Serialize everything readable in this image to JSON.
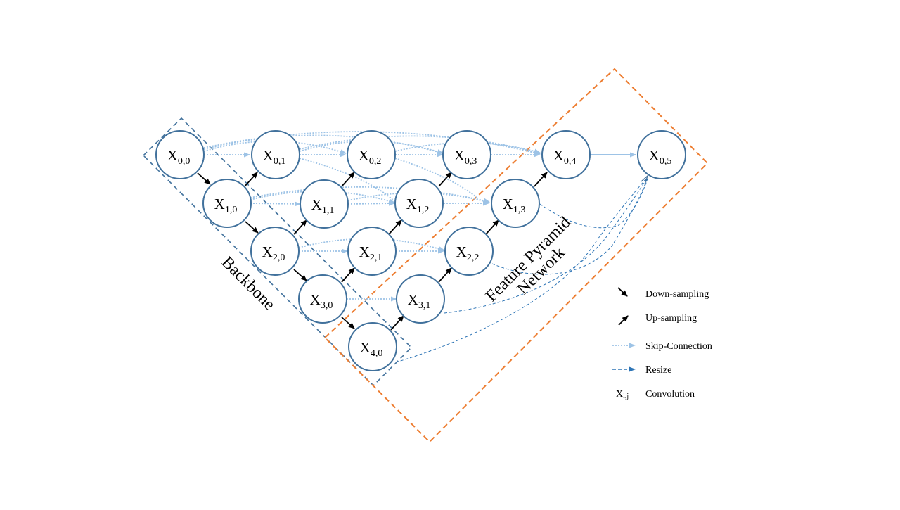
{
  "diagram": {
    "nodes": [
      {
        "id": "x00",
        "main": "X",
        "sub": "0,0"
      },
      {
        "id": "x01",
        "main": "X",
        "sub": "0,1"
      },
      {
        "id": "x02",
        "main": "X",
        "sub": "0,2"
      },
      {
        "id": "x03",
        "main": "X",
        "sub": "0,3"
      },
      {
        "id": "x04",
        "main": "X",
        "sub": "0,4"
      },
      {
        "id": "x05",
        "main": "X",
        "sub": "0,5"
      },
      {
        "id": "x10",
        "main": "X",
        "sub": "1,0"
      },
      {
        "id": "x11",
        "main": "X",
        "sub": "1,1"
      },
      {
        "id": "x12",
        "main": "X",
        "sub": "1,2"
      },
      {
        "id": "x13",
        "main": "X",
        "sub": "1,3"
      },
      {
        "id": "x20",
        "main": "X",
        "sub": "2,0"
      },
      {
        "id": "x21",
        "main": "X",
        "sub": "2,1"
      },
      {
        "id": "x22",
        "main": "X",
        "sub": "2,2"
      },
      {
        "id": "x30",
        "main": "X",
        "sub": "3,0"
      },
      {
        "id": "x31",
        "main": "X",
        "sub": "3,1"
      },
      {
        "id": "x40",
        "main": "X",
        "sub": "4,0"
      }
    ],
    "regions": {
      "backbone": "Backbone",
      "fpn_line1": "Feature Pyramid",
      "fpn_line2": "Network"
    },
    "legend": {
      "down": "Down-sampling",
      "up": "Up-sampling",
      "skip": "Skip-Connection",
      "resize": "Resize",
      "conv_symbol_main": "X",
      "conv_symbol_sub": "i,j",
      "conv": "Convolution"
    },
    "colors": {
      "node_stroke": "#41719c",
      "skip": "#9dc3e6",
      "resize": "#2e75b6",
      "backbone_box": "#41719c",
      "fpn_box": "#ed7d31",
      "arrow": "#000000"
    }
  }
}
